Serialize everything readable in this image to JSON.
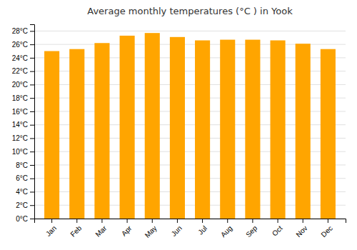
{
  "chart_data": {
    "type": "bar",
    "title": "Average monthly temperatures (°C ) in Yook",
    "categories": [
      "Jan",
      "Feb",
      "Mar",
      "Apr",
      "May",
      "Jun",
      "Jul",
      "Aug",
      "Sep",
      "Oct",
      "Nov",
      "Dec"
    ],
    "values": [
      25.0,
      25.3,
      26.2,
      27.3,
      27.7,
      27.1,
      26.6,
      26.7,
      26.7,
      26.6,
      26.1,
      25.3
    ],
    "color": "#FFA500",
    "ylim": [
      0,
      29
    ],
    "yticks": [
      {
        "value": 0,
        "label": "0°C"
      },
      {
        "value": 2,
        "label": "2°C"
      },
      {
        "value": 4,
        "label": "4°C"
      },
      {
        "value": 6,
        "label": "6°C"
      },
      {
        "value": 8,
        "label": "8°C"
      },
      {
        "value": 10,
        "label": "10°C"
      },
      {
        "value": 12,
        "label": "12°C"
      },
      {
        "value": 14,
        "label": "14°C"
      },
      {
        "value": 16,
        "label": "16°C"
      },
      {
        "value": 18,
        "label": "18°C"
      },
      {
        "value": 20,
        "label": "20°C"
      },
      {
        "value": 22,
        "label": "22°C"
      },
      {
        "value": 24,
        "label": "24°C"
      },
      {
        "value": 26,
        "label": "26°C"
      },
      {
        "value": 28,
        "label": "28°C"
      }
    ],
    "grid": true
  }
}
